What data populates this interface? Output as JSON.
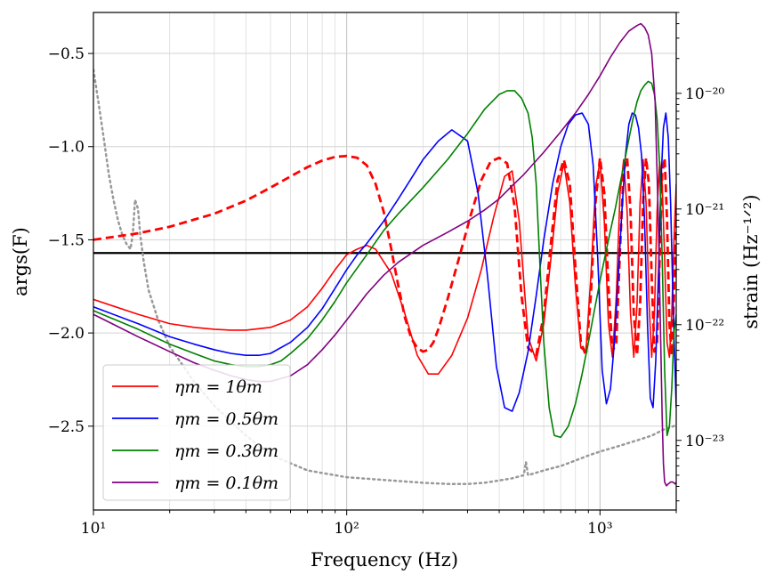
{
  "chart_data": {
    "type": "line",
    "xlabel": "Frequency (Hz)",
    "ylabel_left": "args(F)",
    "ylabel_right": "strain (Hz⁻¹ᐟ²)",
    "xscale": "log",
    "xlim": [
      10,
      2000
    ],
    "ylim": [
      -2.95,
      -0.28
    ],
    "y2scale": "log",
    "y2lim": [
      2.5e-24,
      5e-20
    ],
    "x_ticks": [
      {
        "value": 10,
        "label": "10¹"
      },
      {
        "value": 100,
        "label": "10²"
      },
      {
        "value": 1000,
        "label": "10³"
      }
    ],
    "y_ticks": [
      {
        "value": -0.5,
        "label": "−0.5"
      },
      {
        "value": -1.0,
        "label": "−1.0"
      },
      {
        "value": -1.5,
        "label": "−1.5"
      },
      {
        "value": -2.0,
        "label": "−2.0"
      },
      {
        "value": -2.5,
        "label": "−2.5"
      }
    ],
    "y2_ticks": [
      {
        "value": 1e-20,
        "label": "10⁻²⁰"
      },
      {
        "value": 1e-21,
        "label": "10⁻²¹"
      },
      {
        "value": 1e-22,
        "label": "10⁻²²"
      },
      {
        "value": 1e-23,
        "label": "10⁻²³"
      }
    ],
    "grid": true,
    "legend_position": "lower-left",
    "hline": {
      "y": -1.5708,
      "color": "#000000"
    },
    "series": [
      {
        "name": "ηm = 1θm",
        "color": "#ff0000",
        "style": "solid",
        "legend": true,
        "x": [
          10,
          15,
          20,
          25,
          30,
          35,
          40,
          50,
          60,
          70,
          80,
          90,
          100,
          110,
          120,
          130,
          150,
          170,
          190,
          210,
          230,
          260,
          300,
          340,
          380,
          420,
          450,
          480,
          520,
          560,
          600,
          640,
          680,
          720,
          760,
          800,
          840,
          880,
          920,
          960,
          1000,
          1040,
          1080,
          1120,
          1160,
          1200,
          1240,
          1280,
          1320,
          1360,
          1400,
          1440,
          1480,
          1520,
          1560,
          1600,
          1640,
          1680,
          1720,
          1760,
          1800,
          1840,
          1880,
          1920,
          1960,
          2000
        ],
        "y": [
          -1.82,
          -1.9,
          -1.95,
          -1.97,
          -1.98,
          -1.985,
          -1.985,
          -1.97,
          -1.93,
          -1.86,
          -1.76,
          -1.66,
          -1.58,
          -1.55,
          -1.53,
          -1.55,
          -1.68,
          -1.9,
          -2.12,
          -2.22,
          -2.22,
          -2.12,
          -1.92,
          -1.66,
          -1.38,
          -1.16,
          -1.13,
          -1.4,
          -2.02,
          -2.15,
          -1.95,
          -1.6,
          -1.25,
          -1.09,
          -1.3,
          -1.75,
          -2.08,
          -2.1,
          -1.7,
          -1.22,
          -1.08,
          -1.4,
          -1.95,
          -2.13,
          -1.8,
          -1.25,
          -1.07,
          -1.35,
          -1.9,
          -2.13,
          -1.85,
          -1.3,
          -1.07,
          -1.3,
          -1.82,
          -2.13,
          -1.9,
          -1.35,
          -1.08,
          -1.2,
          -1.6,
          -2.05,
          -2.13,
          -1.9,
          -1.5,
          -1.2
        ]
      },
      {
        "name": "ηm = 1θm (dashed)",
        "color": "#ff0000",
        "style": "dashed",
        "legend": false,
        "x": [
          10,
          15,
          20,
          30,
          40,
          50,
          60,
          70,
          80,
          90,
          100,
          110,
          120,
          130,
          140,
          150,
          160,
          170,
          180,
          190,
          200,
          210,
          220,
          230,
          250,
          280,
          310,
          340,
          370,
          400,
          430,
          460,
          490,
          520,
          560,
          600,
          640,
          680,
          720,
          760,
          800,
          840,
          880,
          920,
          960,
          1000,
          1040,
          1080,
          1120,
          1160,
          1200,
          1240,
          1280,
          1320,
          1360,
          1400,
          1440,
          1480,
          1520,
          1560,
          1600,
          1640,
          1680,
          1720,
          1760,
          1800,
          1840,
          1880,
          1920,
          1960,
          2000
        ],
        "y": [
          -1.5,
          -1.465,
          -1.43,
          -1.36,
          -1.29,
          -1.22,
          -1.16,
          -1.11,
          -1.075,
          -1.055,
          -1.05,
          -1.06,
          -1.1,
          -1.2,
          -1.35,
          -1.55,
          -1.75,
          -1.92,
          -2.03,
          -2.08,
          -2.1,
          -2.09,
          -2.05,
          -1.98,
          -1.82,
          -1.58,
          -1.36,
          -1.18,
          -1.08,
          -1.06,
          -1.09,
          -1.32,
          -1.8,
          -2.08,
          -2.12,
          -1.9,
          -1.52,
          -1.18,
          -1.07,
          -1.2,
          -1.65,
          -2.05,
          -2.12,
          -1.8,
          -1.3,
          -1.06,
          -1.25,
          -1.75,
          -2.1,
          -2.05,
          -1.55,
          -1.13,
          -1.06,
          -1.35,
          -1.9,
          -2.12,
          -1.85,
          -1.3,
          -1.06,
          -1.2,
          -1.7,
          -2.1,
          -2.05,
          -1.6,
          -1.15,
          -1.06,
          -1.4,
          -1.95,
          -2.12,
          -1.8,
          -1.3
        ]
      },
      {
        "name": "ηm = 0.5θm",
        "color": "#0000ff",
        "style": "solid",
        "legend": true,
        "x": [
          10,
          15,
          20,
          25,
          30,
          35,
          40,
          45,
          50,
          60,
          70,
          80,
          90,
          100,
          110,
          120,
          140,
          160,
          180,
          200,
          230,
          260,
          300,
          330,
          360,
          390,
          420,
          450,
          480,
          520,
          560,
          600,
          650,
          700,
          750,
          800,
          850,
          900,
          940,
          980,
          1020,
          1060,
          1100,
          1140,
          1180,
          1220,
          1260,
          1300,
          1340,
          1380,
          1420,
          1460,
          1500,
          1540,
          1580,
          1620,
          1660,
          1700,
          1740,
          1780,
          1820,
          1860,
          1900,
          1940,
          1980,
          2000
        ],
        "y": [
          -1.86,
          -1.95,
          -2.02,
          -2.06,
          -2.09,
          -2.11,
          -2.12,
          -2.12,
          -2.11,
          -2.05,
          -1.97,
          -1.87,
          -1.76,
          -1.66,
          -1.58,
          -1.52,
          -1.4,
          -1.28,
          -1.17,
          -1.07,
          -0.97,
          -0.91,
          -0.97,
          -1.25,
          -1.7,
          -2.18,
          -2.4,
          -2.42,
          -2.32,
          -2.1,
          -1.8,
          -1.5,
          -1.2,
          -1.0,
          -0.88,
          -0.83,
          -0.82,
          -0.88,
          -1.1,
          -1.6,
          -2.2,
          -2.38,
          -2.3,
          -2.05,
          -1.7,
          -1.35,
          -1.05,
          -0.88,
          -0.82,
          -0.83,
          -0.9,
          -1.05,
          -1.4,
          -1.95,
          -2.35,
          -2.4,
          -2.15,
          -1.7,
          -1.2,
          -0.9,
          -0.82,
          -0.95,
          -1.3,
          -1.8,
          -2.2,
          -2.4
        ]
      },
      {
        "name": "ηm = 0.3θm",
        "color": "#008000",
        "style": "solid",
        "legend": true,
        "x": [
          10,
          15,
          20,
          25,
          30,
          35,
          40,
          45,
          50,
          55,
          60,
          70,
          80,
          90,
          100,
          120,
          140,
          160,
          200,
          250,
          300,
          350,
          400,
          430,
          460,
          490,
          520,
          540,
          560,
          580,
          600,
          630,
          660,
          700,
          750,
          800,
          850,
          900,
          950,
          1000,
          1050,
          1100,
          1150,
          1200,
          1250,
          1300,
          1350,
          1400,
          1450,
          1500,
          1550,
          1600,
          1640,
          1680,
          1720,
          1760,
          1800,
          1840,
          1880,
          1920,
          1960,
          2000
        ],
        "y": [
          -1.88,
          -1.98,
          -2.06,
          -2.11,
          -2.15,
          -2.17,
          -2.18,
          -2.18,
          -2.17,
          -2.15,
          -2.11,
          -2.03,
          -1.93,
          -1.83,
          -1.73,
          -1.58,
          -1.45,
          -1.36,
          -1.22,
          -1.07,
          -0.93,
          -0.8,
          -0.72,
          -0.7,
          -0.7,
          -0.74,
          -0.82,
          -0.95,
          -1.2,
          -1.65,
          -2.05,
          -2.4,
          -2.55,
          -2.56,
          -2.5,
          -2.38,
          -2.22,
          -2.05,
          -1.88,
          -1.72,
          -1.58,
          -1.45,
          -1.33,
          -1.2,
          -1.08,
          -0.96,
          -0.85,
          -0.76,
          -0.7,
          -0.67,
          -0.65,
          -0.66,
          -0.72,
          -0.85,
          -1.1,
          -1.6,
          -2.2,
          -2.55,
          -2.5,
          -2.3,
          -2.0,
          -1.9
        ]
      },
      {
        "name": "ηm = 0.1θm",
        "color": "#800080",
        "style": "solid",
        "legend": true,
        "x": [
          10,
          15,
          20,
          25,
          30,
          35,
          40,
          45,
          50,
          60,
          70,
          80,
          90,
          100,
          120,
          140,
          160,
          200,
          250,
          300,
          350,
          400,
          450,
          500,
          600,
          700,
          800,
          900,
          1000,
          1100,
          1200,
          1300,
          1400,
          1450,
          1500,
          1550,
          1600,
          1650,
          1700,
          1740,
          1760,
          1780,
          1800,
          1830,
          1860,
          1900,
          1940,
          1980,
          2000
        ],
        "y": [
          -1.9,
          -2.02,
          -2.1,
          -2.16,
          -2.2,
          -2.23,
          -2.25,
          -2.26,
          -2.26,
          -2.23,
          -2.17,
          -2.09,
          -2.01,
          -1.93,
          -1.79,
          -1.69,
          -1.62,
          -1.53,
          -1.46,
          -1.4,
          -1.34,
          -1.28,
          -1.21,
          -1.15,
          -1.03,
          -0.92,
          -0.82,
          -0.72,
          -0.62,
          -0.52,
          -0.44,
          -0.38,
          -0.35,
          -0.34,
          -0.36,
          -0.4,
          -0.5,
          -0.75,
          -1.4,
          -2.1,
          -2.45,
          -2.7,
          -2.8,
          -2.82,
          -2.81,
          -2.8,
          -2.8,
          -2.81,
          -2.8
        ]
      },
      {
        "name": "strain (dotted)",
        "color": "#999999",
        "style": "dotted",
        "legend": false,
        "axis": "right",
        "x": [
          10,
          10.5,
          11,
          11.5,
          12,
          12.5,
          13,
          13.5,
          14,
          14.3,
          14.6,
          15,
          15.3,
          15.8,
          16.5,
          18,
          20,
          25,
          30,
          40,
          50,
          70,
          100,
          150,
          200,
          250,
          300,
          350,
          400,
          450,
          500,
          510,
          520,
          600,
          700,
          800,
          900,
          1000,
          1200,
          1400,
          1600,
          1800,
          2000
        ],
        "y": [
          1.6e-20,
          8e-21,
          4e-21,
          2e-21,
          1.2e-21,
          8e-22,
          6e-22,
          5e-22,
          4.5e-22,
          6e-22,
          1.2e-21,
          1e-21,
          6e-22,
          3.5e-22,
          2e-22,
          1.1e-22,
          6.5e-23,
          3.2e-23,
          2e-23,
          1.1e-23,
          7.5e-24,
          5.5e-24,
          4.8e-24,
          4.5e-24,
          4.3e-24,
          4.2e-24,
          4.2e-24,
          4.3e-24,
          4.5e-24,
          4.7e-24,
          5e-24,
          6.5e-24,
          5e-24,
          5.5e-24,
          6e-24,
          6.7e-24,
          7.4e-24,
          8e-24,
          9e-24,
          1e-23,
          1.1e-23,
          1.25e-23,
          1.35e-23
        ]
      }
    ]
  }
}
